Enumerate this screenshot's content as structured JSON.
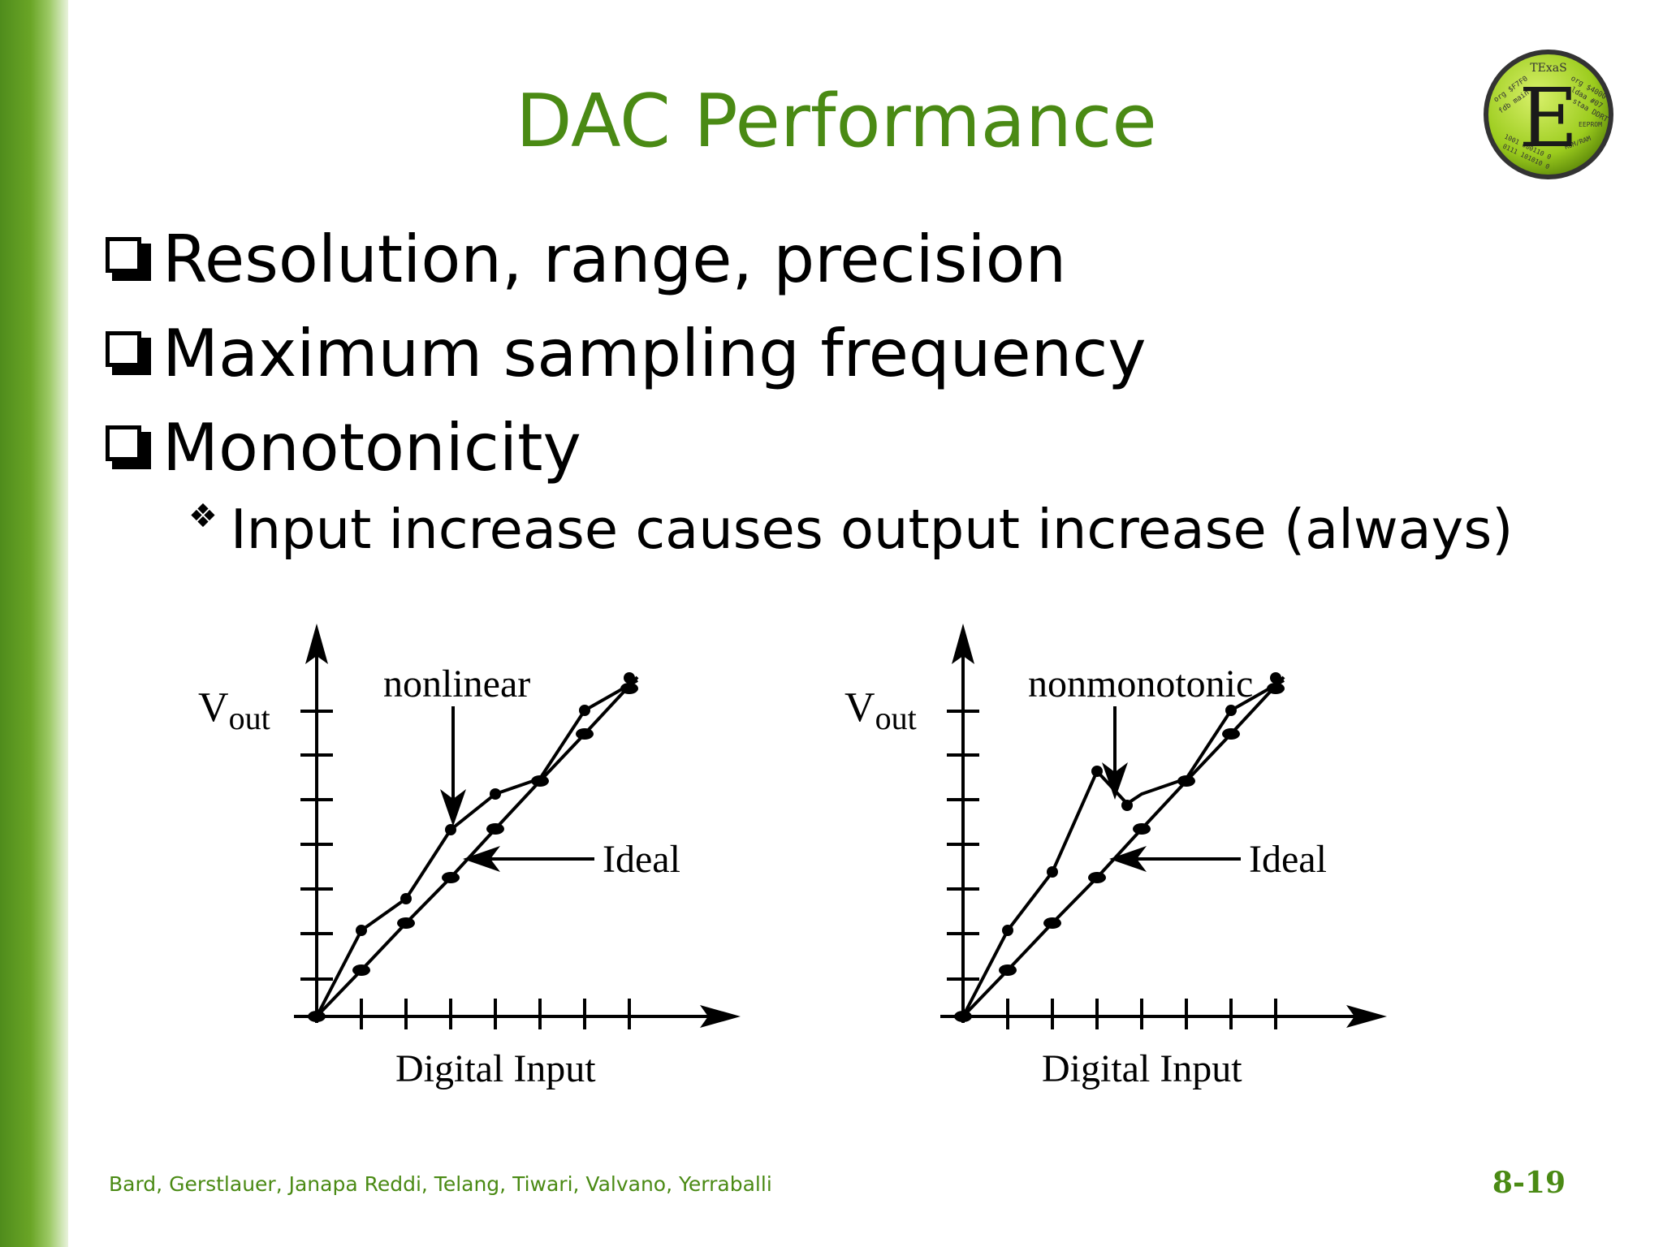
{
  "slide": {
    "title": "DAC Performance",
    "bullets": [
      "Resolution, range, precision",
      "Maximum sampling frequency",
      "Monotonicity"
    ],
    "sub_bullet": "Input increase causes output increase (always)",
    "footer": "Bard, Gerstlauer, Janapa Reddi, Telang, Tiwari, Valvano, Yerraballi",
    "page_number": "8-19",
    "accent_color": "#4a8a14"
  },
  "logo": {
    "letter": "E",
    "top_text": "TExaS",
    "fragments": [
      "org $F7F0",
      "org $4000",
      "fdb main",
      "ldaa #07",
      "staa DDRT",
      "EEPROM",
      "ROM/RAM",
      "1001 000110 0",
      "0111 101010 0"
    ]
  },
  "diagrams": [
    {
      "vout_main": "V",
      "vout_sub": "out",
      "annotation": "nonlinear",
      "ideal_label": "Ideal",
      "xlabel": "Digital Input"
    },
    {
      "vout_main": "V",
      "vout_sub": "out",
      "annotation": "nonmonotonic",
      "ideal_label": "Ideal",
      "xlabel": "Digital Input"
    }
  ]
}
